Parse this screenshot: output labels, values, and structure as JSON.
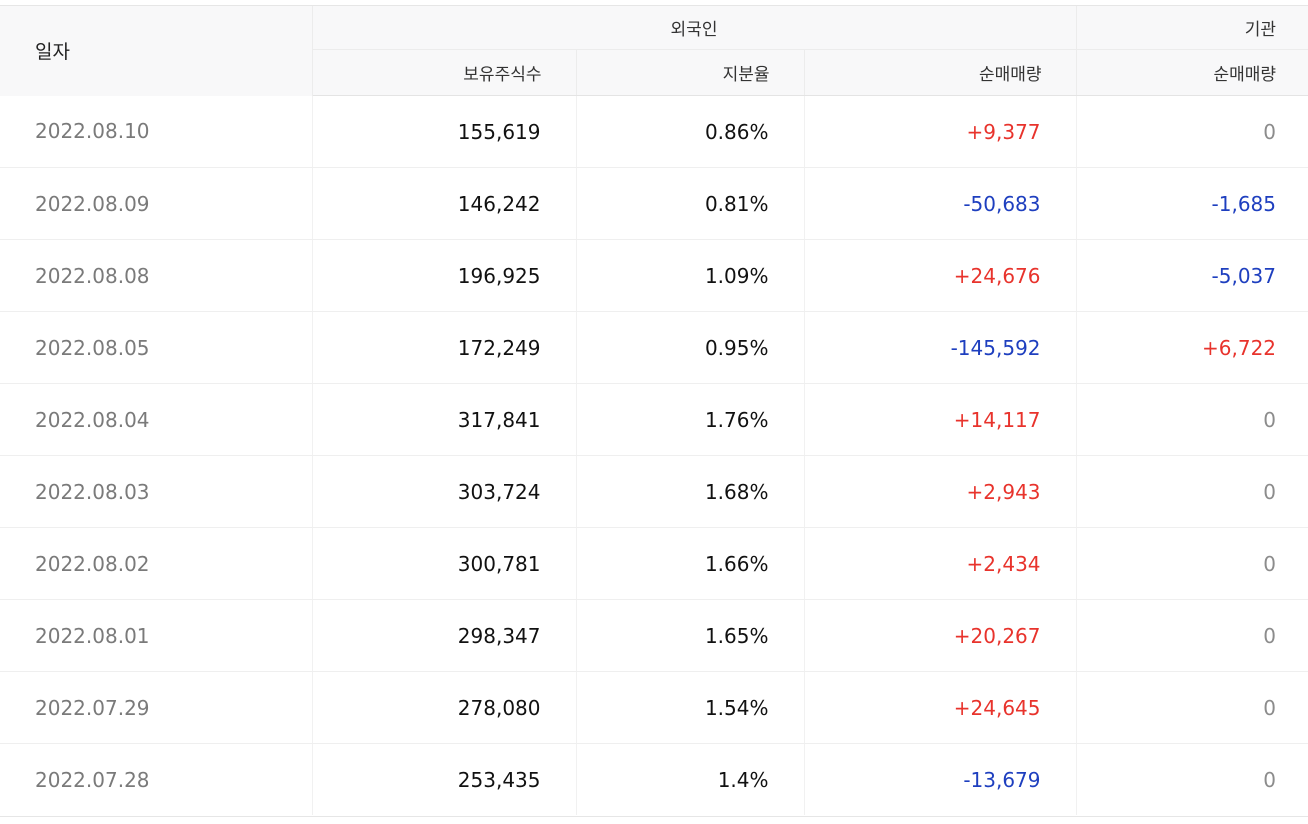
{
  "header": {
    "date_label": "일자",
    "foreign_label": "외국인",
    "institution_label": "기관",
    "holdings_label": "보유주식수",
    "ratio_label": "지분율",
    "foreign_net_label": "순매매량",
    "institution_net_label": "순매매량"
  },
  "colors": {
    "up": "#e8332c",
    "down": "#1e3fbf",
    "zero": "#8c8c8c"
  },
  "rows": [
    {
      "date": "2022.08.10",
      "holdings": "155,619",
      "ratio": "0.86%",
      "foreign_net": "+9,377",
      "institution_net": "0"
    },
    {
      "date": "2022.08.09",
      "holdings": "146,242",
      "ratio": "0.81%",
      "foreign_net": "-50,683",
      "institution_net": "-1,685"
    },
    {
      "date": "2022.08.08",
      "holdings": "196,925",
      "ratio": "1.09%",
      "foreign_net": "+24,676",
      "institution_net": "-5,037"
    },
    {
      "date": "2022.08.05",
      "holdings": "172,249",
      "ratio": "0.95%",
      "foreign_net": "-145,592",
      "institution_net": "+6,722"
    },
    {
      "date": "2022.08.04",
      "holdings": "317,841",
      "ratio": "1.76%",
      "foreign_net": "+14,117",
      "institution_net": "0"
    },
    {
      "date": "2022.08.03",
      "holdings": "303,724",
      "ratio": "1.68%",
      "foreign_net": "+2,943",
      "institution_net": "0"
    },
    {
      "date": "2022.08.02",
      "holdings": "300,781",
      "ratio": "1.66%",
      "foreign_net": "+2,434",
      "institution_net": "0"
    },
    {
      "date": "2022.08.01",
      "holdings": "298,347",
      "ratio": "1.65%",
      "foreign_net": "+20,267",
      "institution_net": "0"
    },
    {
      "date": "2022.07.29",
      "holdings": "278,080",
      "ratio": "1.54%",
      "foreign_net": "+24,645",
      "institution_net": "0"
    },
    {
      "date": "2022.07.28",
      "holdings": "253,435",
      "ratio": "1.4%",
      "foreign_net": "-13,679",
      "institution_net": "0"
    }
  ]
}
